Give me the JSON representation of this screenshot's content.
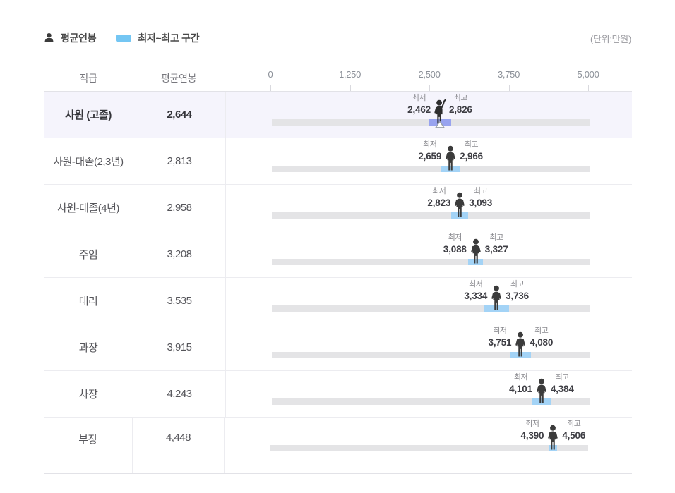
{
  "page": {
    "unit_note": "(단위:만원)"
  },
  "legend": {
    "avg_label": "평균연봉",
    "range_label": "최저~최고 구간"
  },
  "table": {
    "col_position": "직급",
    "col_avg": "평균연봉"
  },
  "labels": {
    "min": "최저",
    "max": "최고"
  },
  "colors": {
    "legend_swatch": "#74c6f3",
    "range_bar": "#a3d3f6",
    "highlight_bar": "#98a3ef",
    "highlight_row_bg": "#f5f4fc",
    "track": "#e4e4e6"
  },
  "chart_data": {
    "type": "bar",
    "subtype": "min-max-range-rows",
    "unit": "만원",
    "xlim": [
      0,
      5000
    ],
    "axis_ticks": [
      "0",
      "1,250",
      "2,500",
      "3,750",
      "5,000"
    ],
    "axis_values": [
      0,
      1250,
      2500,
      3750,
      5000
    ],
    "rows": [
      {
        "position": "사원 (고졸)",
        "avg": 2644,
        "avg_text": "2,644",
        "min": 2462,
        "min_text": "2,462",
        "max": 2826,
        "max_text": "2,826",
        "highlighted": true
      },
      {
        "position": "사원-대졸(2,3년)",
        "avg": 2813,
        "avg_text": "2,813",
        "min": 2659,
        "min_text": "2,659",
        "max": 2966,
        "max_text": "2,966",
        "highlighted": false
      },
      {
        "position": "사원-대졸(4년)",
        "avg": 2958,
        "avg_text": "2,958",
        "min": 2823,
        "min_text": "2,823",
        "max": 3093,
        "max_text": "3,093",
        "highlighted": false
      },
      {
        "position": "주임",
        "avg": 3208,
        "avg_text": "3,208",
        "min": 3088,
        "min_text": "3,088",
        "max": 3327,
        "max_text": "3,327",
        "highlighted": false
      },
      {
        "position": "대리",
        "avg": 3535,
        "avg_text": "3,535",
        "min": 3334,
        "min_text": "3,334",
        "max": 3736,
        "max_text": "3,736",
        "highlighted": false
      },
      {
        "position": "과장",
        "avg": 3915,
        "avg_text": "3,915",
        "min": 3751,
        "min_text": "3,751",
        "max": 4080,
        "max_text": "4,080",
        "highlighted": false
      },
      {
        "position": "차장",
        "avg": 4243,
        "avg_text": "4,243",
        "min": 4101,
        "min_text": "4,101",
        "max": 4384,
        "max_text": "4,384",
        "highlighted": false
      },
      {
        "position": "부장",
        "avg": 4448,
        "avg_text": "4,448",
        "min": 4390,
        "min_text": "4,390",
        "max": 4506,
        "max_text": "4,506",
        "highlighted": false
      }
    ]
  }
}
